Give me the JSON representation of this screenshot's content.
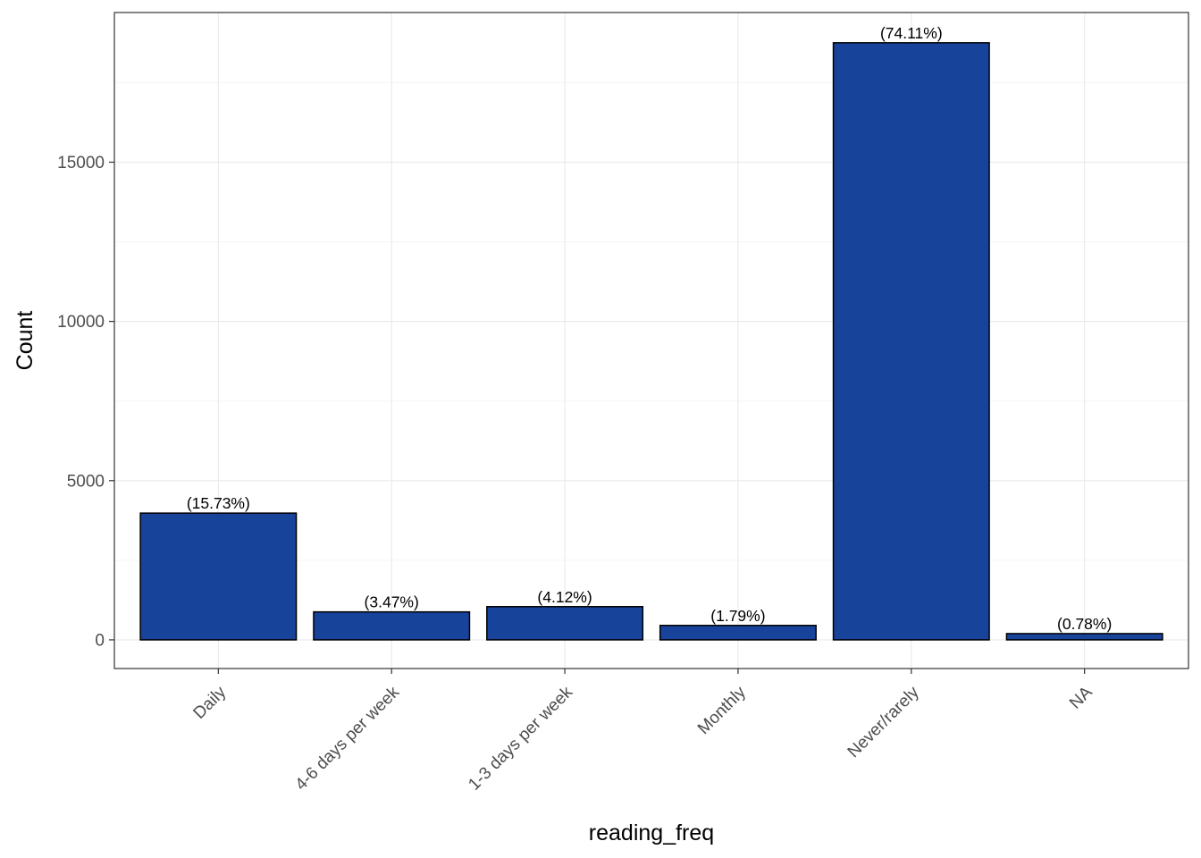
{
  "chart_data": {
    "type": "bar",
    "categories": [
      "Daily",
      "4-6 days per week",
      "1-3 days per week",
      "Monthly",
      "Never/rarely",
      "NA"
    ],
    "values": [
      3980,
      878,
      1043,
      453,
      18750,
      197
    ],
    "labels": [
      "(15.73%)",
      "(3.47%)",
      "(4.12%)",
      "(1.79%)",
      "(74.11%)",
      "(0.78%)"
    ],
    "xlabel": "reading_freq",
    "ylabel": "Count",
    "ylim": [
      -900,
      19700
    ],
    "yticks": [
      0,
      5000,
      10000,
      15000
    ],
    "grid": true,
    "legend": "none",
    "colors": {
      "bar_fill": "#18439A",
      "bar_stroke": "#000000",
      "grid_major": "#ebebeb",
      "grid_minor": "#f5f5f5",
      "panel_border": "#333333"
    }
  }
}
